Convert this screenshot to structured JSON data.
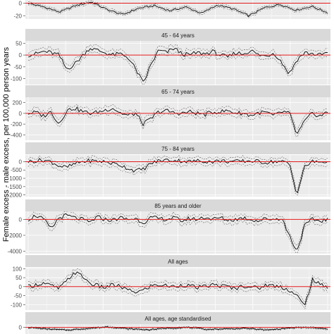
{
  "figure": {
    "ylabel": "Female excess - male excess, per 100,000 person years",
    "colors": {
      "panel_bg": "#EBEBEB",
      "grid": "#FFFFFF",
      "strip_bg": "#D9D9D9",
      "zero_line": "#E41A1C",
      "estimate": "#000000",
      "ci": "#333333",
      "tick_text": "#4D4D4D"
    }
  },
  "chart_data": [
    {
      "type": "line",
      "panel": "top (label cut off)",
      "title": "",
      "x_points": 160,
      "ylim": [
        -25,
        5
      ],
      "yticks": [
        0,
        -20
      ],
      "series": [
        {
          "name": "",
          "values": [
            0,
            -6,
            -14,
            -4,
            2,
            -10,
            -18,
            -8,
            -4,
            -12,
            -6,
            -16,
            -3,
            -9,
            -20,
            -7,
            -2,
            -11,
            -5,
            -15
          ]
        }
      ],
      "ci_band": "dashed lines approx. ±4 around estimate"
    },
    {
      "type": "line",
      "panel": "45-64",
      "title": "45 - 64 years",
      "x_points": 160,
      "ylim": [
        -125,
        60
      ],
      "yticks": [
        50,
        0,
        -50,
        -100
      ],
      "series": [
        {
          "name": "",
          "values": [
            0,
            5,
            15,
            10,
            0,
            -60,
            -40,
            -5,
            30,
            20,
            10,
            0,
            5,
            -10,
            -60,
            -120,
            -40,
            20,
            10,
            30,
            5,
            0,
            10,
            5,
            15,
            0,
            -10,
            10,
            5,
            20,
            0,
            -5,
            10,
            -30,
            -80,
            -20,
            10,
            5,
            0,
            10
          ]
        }
      ],
      "ci_band": "dashed lines approx. ±20 around estimate"
    },
    {
      "type": "line",
      "panel": "65-74",
      "title": "65 - 74 years",
      "x_points": 160,
      "ylim": [
        -500,
        300
      ],
      "yticks": [
        200,
        0,
        -200,
        -400
      ],
      "series": [
        {
          "name": "",
          "values": [
            0,
            20,
            -50,
            30,
            -200,
            50,
            100,
            40,
            0,
            20,
            60,
            100,
            10,
            -40,
            0,
            -200,
            -100,
            30,
            50,
            10,
            0,
            30,
            0,
            -20,
            20,
            30,
            50,
            10,
            0,
            -40,
            10,
            20,
            -50,
            30,
            10,
            -400,
            -150,
            0,
            -50,
            20
          ]
        }
      ],
      "ci_band": "dashed lines approx. ±60 around estimate"
    },
    {
      "type": "line",
      "panel": "75-84",
      "title": "75 - 84 years",
      "x_points": 160,
      "ylim": [
        -2100,
        400
      ],
      "yticks": [
        0,
        -500,
        -1000,
        -1500,
        -2000
      ],
      "series": [
        {
          "name": "",
          "values": [
            0,
            50,
            100,
            0,
            -250,
            -350,
            -150,
            0,
            50,
            30,
            0,
            -100,
            -200,
            -400,
            -550,
            -450,
            -100,
            50,
            100,
            80,
            50,
            0,
            50,
            30,
            0,
            50,
            20,
            0,
            30,
            50,
            0,
            -50,
            20,
            0,
            -100,
            -1950,
            -300,
            0,
            -20,
            20
          ]
        }
      ],
      "ci_band": "dashed lines approx. ±120 around estimate"
    },
    {
      "type": "line",
      "panel": "85+",
      "title": "85 years and older",
      "x_points": 160,
      "ylim": [
        -4300,
        1000
      ],
      "yticks": [
        0,
        -2000,
        -4000
      ],
      "series": [
        {
          "name": "",
          "values": [
            0,
            500,
            0,
            -1200,
            200,
            500,
            200,
            0,
            -400,
            300,
            0,
            -100,
            200,
            0,
            100,
            -400,
            200,
            100,
            0,
            200,
            -200,
            100,
            0,
            300,
            0,
            200,
            -100,
            0,
            200,
            0,
            -200,
            100,
            0,
            200,
            -2000,
            -4000,
            -800,
            0,
            -200,
            0
          ]
        }
      ],
      "ci_band": "dashed lines approx. ±400 around estimate"
    },
    {
      "type": "line",
      "panel": "All ages",
      "title": "All ages",
      "x_points": 160,
      "ylim": [
        -130,
        105
      ],
      "yticks": [
        100,
        50,
        0,
        -50,
        -100
      ],
      "series": [
        {
          "name": "",
          "values": [
            0,
            10,
            20,
            5,
            -10,
            30,
            80,
            60,
            20,
            5,
            -5,
            10,
            0,
            -20,
            -30,
            -20,
            5,
            10,
            5,
            0,
            10,
            5,
            -5,
            0,
            10,
            5,
            0,
            -10,
            5,
            0,
            -10,
            10,
            5,
            0,
            -20,
            -50,
            -110,
            40,
            10,
            0
          ]
        }
      ],
      "ci_band": "dashed lines approx. ±15 around estimate"
    },
    {
      "type": "line",
      "panel": "All ages, age standardised",
      "title": "All ages, age standardised",
      "x_points": 160,
      "ylim": [
        -20,
        10
      ],
      "yticks": [
        0
      ],
      "series": [
        {
          "name": "",
          "values": [
            0,
            -5,
            -8,
            -3,
            2,
            -4,
            -7,
            -2,
            0,
            -6,
            -4,
            -3,
            -8,
            -2,
            0,
            -5
          ]
        }
      ],
      "ci_band": "dashed lines approx. ±3 around estimate"
    }
  ]
}
